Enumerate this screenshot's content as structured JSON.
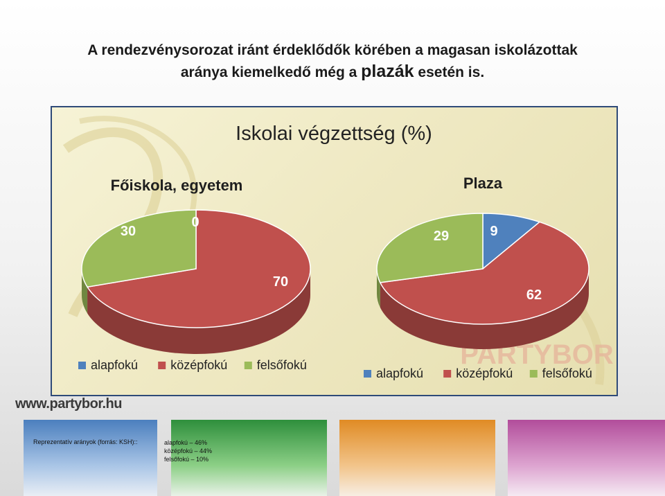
{
  "slide": {
    "title_line1": "A rendezvénysorozat iránt érdeklődők körében a magasan iskolázottak",
    "title_line2_pre": "aránya kiemelkedő még a ",
    "title_line2_em": "plazák",
    "title_line2_post": " esetén is.",
    "website": "www.partybor.hu",
    "watermark": "PARTYBOR",
    "footer_note": "Reprezentatív arányok (forrás: KSH)::",
    "footer_items": [
      "alapfokú – 46%",
      "középfokú – 44%",
      "felsőfokú – 10%"
    ]
  },
  "chart_data": {
    "title": "Iskolai végzettség (%)",
    "type": "pie",
    "legend": [
      "alapfokú",
      "középfokú",
      "felsőfokú"
    ],
    "colors": [
      "#4f81bd",
      "#c0504d",
      "#9bbb59"
    ],
    "charts": [
      {
        "name": "Főiskola, egyetem",
        "categories": [
          "alapfokú",
          "középfokú",
          "felsőfokú"
        ],
        "values": [
          0,
          70,
          30
        ],
        "labels": [
          "0",
          "70",
          "30"
        ]
      },
      {
        "name": "Plaza",
        "categories": [
          "alapfokú",
          "középfokú",
          "felsőfokú"
        ],
        "values": [
          9,
          62,
          29
        ],
        "labels": [
          "9",
          "62",
          "29"
        ]
      }
    ]
  }
}
